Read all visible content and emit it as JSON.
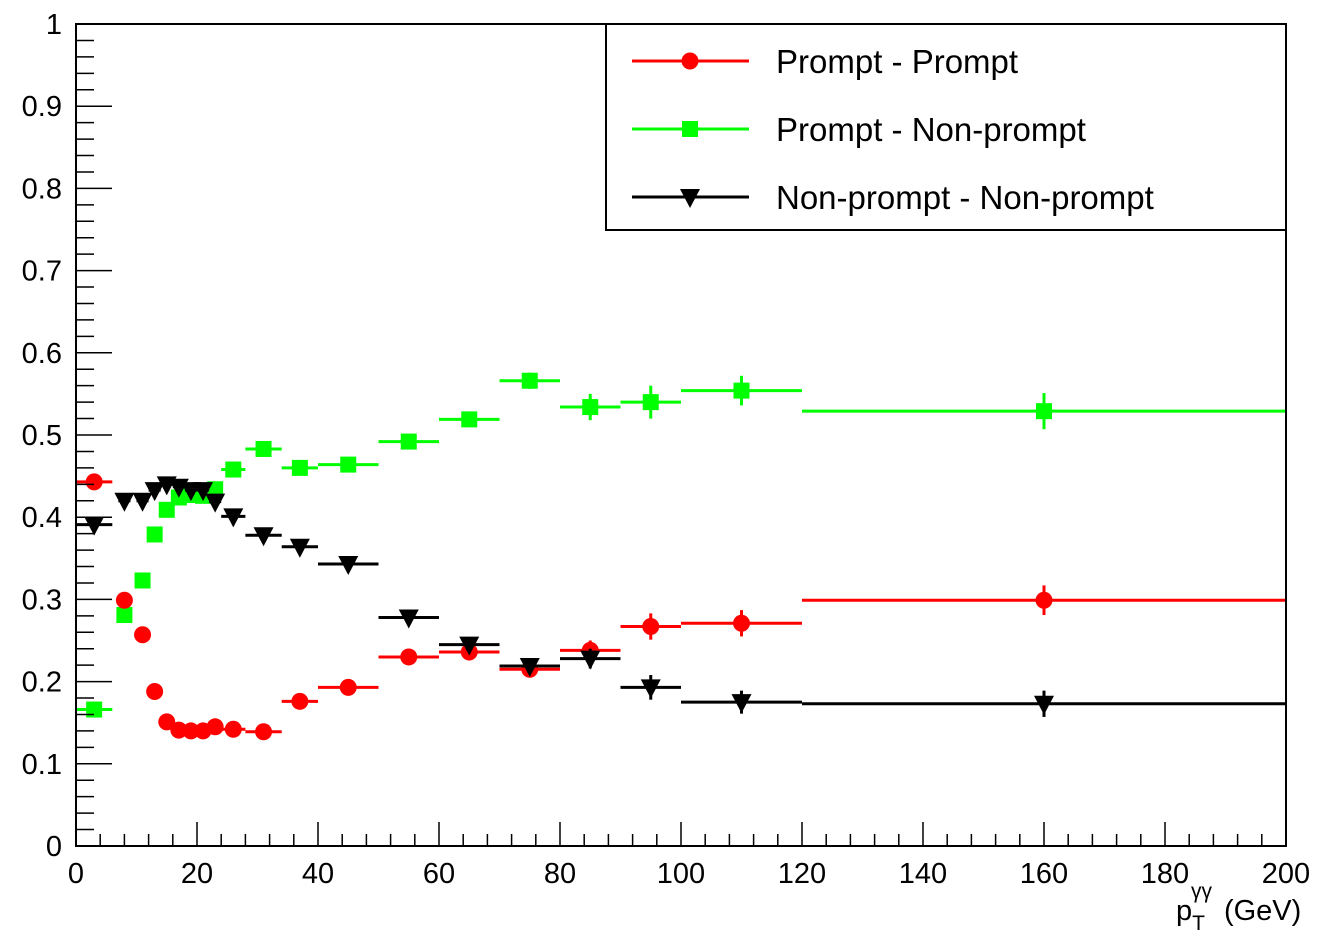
{
  "chart_data": {
    "type": "scatter",
    "title": "",
    "xlabel_main": "p",
    "xlabel_sub": "T",
    "xlabel_sup": "γγ",
    "xlabel_unit": "(GeV)",
    "ylabel": "",
    "xlim": [
      0,
      200
    ],
    "ylim": [
      0,
      1
    ],
    "x_ticks": [
      0,
      20,
      40,
      60,
      80,
      100,
      120,
      140,
      160,
      180,
      200
    ],
    "y_ticks": [
      0,
      0.1,
      0.2,
      0.3,
      0.4,
      0.5,
      0.6,
      0.7,
      0.8,
      0.9,
      1
    ],
    "grid": false,
    "legend_position": "top-right",
    "series": [
      {
        "name": "Prompt - Prompt",
        "color": "#ff0000",
        "marker": "circle",
        "points": [
          {
            "x": 3,
            "xlo": 0,
            "xhi": 6,
            "y": 0.443,
            "err": 0.006
          },
          {
            "x": 8,
            "xlo": 7,
            "xhi": 9,
            "y": 0.299,
            "err": 0.005
          },
          {
            "x": 11,
            "xlo": 10,
            "xhi": 12,
            "y": 0.257,
            "err": 0.005
          },
          {
            "x": 13,
            "xlo": 12,
            "xhi": 14,
            "y": 0.188,
            "err": 0.004
          },
          {
            "x": 15,
            "xlo": 14,
            "xhi": 16,
            "y": 0.151,
            "err": 0.004
          },
          {
            "x": 17,
            "xlo": 16,
            "xhi": 18,
            "y": 0.141,
            "err": 0.004
          },
          {
            "x": 19,
            "xlo": 18,
            "xhi": 20,
            "y": 0.14,
            "err": 0.004
          },
          {
            "x": 21,
            "xlo": 20,
            "xhi": 22,
            "y": 0.14,
            "err": 0.004
          },
          {
            "x": 23,
            "xlo": 22,
            "xhi": 24,
            "y": 0.145,
            "err": 0.004
          },
          {
            "x": 26,
            "xlo": 24,
            "xhi": 28,
            "y": 0.142,
            "err": 0.004
          },
          {
            "x": 31,
            "xlo": 28,
            "xhi": 34,
            "y": 0.139,
            "err": 0.004
          },
          {
            "x": 37,
            "xlo": 34,
            "xhi": 40,
            "y": 0.176,
            "err": 0.005
          },
          {
            "x": 45,
            "xlo": 40,
            "xhi": 50,
            "y": 0.193,
            "err": 0.005
          },
          {
            "x": 55,
            "xlo": 50,
            "xhi": 60,
            "y": 0.23,
            "err": 0.006
          },
          {
            "x": 65,
            "xlo": 60,
            "xhi": 70,
            "y": 0.236,
            "err": 0.007
          },
          {
            "x": 75,
            "xlo": 70,
            "xhi": 80,
            "y": 0.215,
            "err": 0.008
          },
          {
            "x": 85,
            "xlo": 80,
            "xhi": 90,
            "y": 0.238,
            "err": 0.012
          },
          {
            "x": 95,
            "xlo": 90,
            "xhi": 100,
            "y": 0.267,
            "err": 0.016
          },
          {
            "x": 110,
            "xlo": 100,
            "xhi": 120,
            "y": 0.271,
            "err": 0.016
          },
          {
            "x": 160,
            "xlo": 120,
            "xhi": 200,
            "y": 0.299,
            "err": 0.018
          }
        ]
      },
      {
        "name": "Prompt - Non-prompt",
        "color": "#00ff00",
        "marker": "square",
        "points": [
          {
            "x": 3,
            "xlo": 0,
            "xhi": 6,
            "y": 0.166,
            "err": 0.005
          },
          {
            "x": 8,
            "xlo": 7,
            "xhi": 9,
            "y": 0.281,
            "err": 0.006
          },
          {
            "x": 11,
            "xlo": 10,
            "xhi": 12,
            "y": 0.323,
            "err": 0.006
          },
          {
            "x": 13,
            "xlo": 12,
            "xhi": 14,
            "y": 0.379,
            "err": 0.006
          },
          {
            "x": 15,
            "xlo": 14,
            "xhi": 16,
            "y": 0.409,
            "err": 0.006
          },
          {
            "x": 17,
            "xlo": 16,
            "xhi": 18,
            "y": 0.424,
            "err": 0.006
          },
          {
            "x": 19,
            "xlo": 18,
            "xhi": 20,
            "y": 0.427,
            "err": 0.006
          },
          {
            "x": 21,
            "xlo": 20,
            "xhi": 22,
            "y": 0.426,
            "err": 0.006
          },
          {
            "x": 23,
            "xlo": 22,
            "xhi": 24,
            "y": 0.434,
            "err": 0.006
          },
          {
            "x": 26,
            "xlo": 24,
            "xhi": 28,
            "y": 0.458,
            "err": 0.006
          },
          {
            "x": 31,
            "xlo": 28,
            "xhi": 34,
            "y": 0.483,
            "err": 0.006
          },
          {
            "x": 37,
            "xlo": 34,
            "xhi": 40,
            "y": 0.46,
            "err": 0.007
          },
          {
            "x": 45,
            "xlo": 40,
            "xhi": 50,
            "y": 0.464,
            "err": 0.007
          },
          {
            "x": 55,
            "xlo": 50,
            "xhi": 60,
            "y": 0.492,
            "err": 0.008
          },
          {
            "x": 65,
            "xlo": 60,
            "xhi": 70,
            "y": 0.519,
            "err": 0.009
          },
          {
            "x": 75,
            "xlo": 70,
            "xhi": 80,
            "y": 0.566,
            "err": 0.01
          },
          {
            "x": 85,
            "xlo": 80,
            "xhi": 90,
            "y": 0.534,
            "err": 0.016
          },
          {
            "x": 95,
            "xlo": 90,
            "xhi": 100,
            "y": 0.54,
            "err": 0.02
          },
          {
            "x": 110,
            "xlo": 100,
            "xhi": 120,
            "y": 0.554,
            "err": 0.018
          },
          {
            "x": 160,
            "xlo": 120,
            "xhi": 200,
            "y": 0.529,
            "err": 0.022
          }
        ]
      },
      {
        "name": "Non-prompt - Non-prompt",
        "color": "#000000",
        "marker": "triangle-down",
        "points": [
          {
            "x": 3,
            "xlo": 0,
            "xhi": 6,
            "y": 0.391,
            "err": 0.006
          },
          {
            "x": 8,
            "xlo": 7,
            "xhi": 9,
            "y": 0.42,
            "err": 0.006
          },
          {
            "x": 11,
            "xlo": 10,
            "xhi": 12,
            "y": 0.42,
            "err": 0.006
          },
          {
            "x": 13,
            "xlo": 12,
            "xhi": 14,
            "y": 0.433,
            "err": 0.006
          },
          {
            "x": 15,
            "xlo": 14,
            "xhi": 16,
            "y": 0.44,
            "err": 0.006
          },
          {
            "x": 17,
            "xlo": 16,
            "xhi": 18,
            "y": 0.437,
            "err": 0.006
          },
          {
            "x": 19,
            "xlo": 18,
            "xhi": 20,
            "y": 0.433,
            "err": 0.006
          },
          {
            "x": 21,
            "xlo": 20,
            "xhi": 22,
            "y": 0.433,
            "err": 0.006
          },
          {
            "x": 23,
            "xlo": 22,
            "xhi": 24,
            "y": 0.419,
            "err": 0.006
          },
          {
            "x": 26,
            "xlo": 24,
            "xhi": 28,
            "y": 0.401,
            "err": 0.006
          },
          {
            "x": 31,
            "xlo": 28,
            "xhi": 34,
            "y": 0.378,
            "err": 0.006
          },
          {
            "x": 37,
            "xlo": 34,
            "xhi": 40,
            "y": 0.364,
            "err": 0.006
          },
          {
            "x": 45,
            "xlo": 40,
            "xhi": 50,
            "y": 0.343,
            "err": 0.007
          },
          {
            "x": 55,
            "xlo": 50,
            "xhi": 60,
            "y": 0.278,
            "err": 0.008
          },
          {
            "x": 65,
            "xlo": 60,
            "xhi": 70,
            "y": 0.245,
            "err": 0.008
          },
          {
            "x": 75,
            "xlo": 70,
            "xhi": 80,
            "y": 0.219,
            "err": 0.009
          },
          {
            "x": 85,
            "xlo": 80,
            "xhi": 90,
            "y": 0.228,
            "err": 0.012
          },
          {
            "x": 95,
            "xlo": 90,
            "xhi": 100,
            "y": 0.193,
            "err": 0.015
          },
          {
            "x": 110,
            "xlo": 100,
            "xhi": 120,
            "y": 0.175,
            "err": 0.014
          },
          {
            "x": 160,
            "xlo": 120,
            "xhi": 200,
            "y": 0.173,
            "err": 0.016
          }
        ]
      }
    ]
  }
}
